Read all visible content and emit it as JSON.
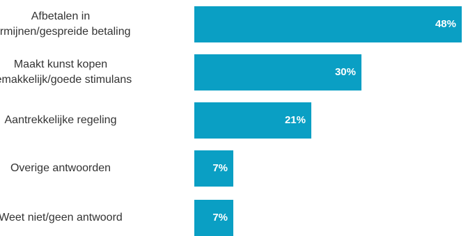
{
  "chart_data": {
    "type": "bar",
    "orientation": "horizontal",
    "categories": [
      "Afbetalen in\ntermijnen/gespreide betaling",
      "Maakt kunst kopen\ngemakkelijk/goede stimulans",
      "Aantrekkelijke regeling",
      "Overige antwoorden",
      "Weet niet/geen antwoord"
    ],
    "values": [
      48,
      30,
      21,
      7,
      7
    ],
    "value_labels": [
      "48%",
      "30%",
      "21%",
      "7%",
      "7%"
    ],
    "unit": "%",
    "bar_color": "#0a9fc4",
    "label_color": "#ffffff",
    "grid": false,
    "legend": "none"
  }
}
